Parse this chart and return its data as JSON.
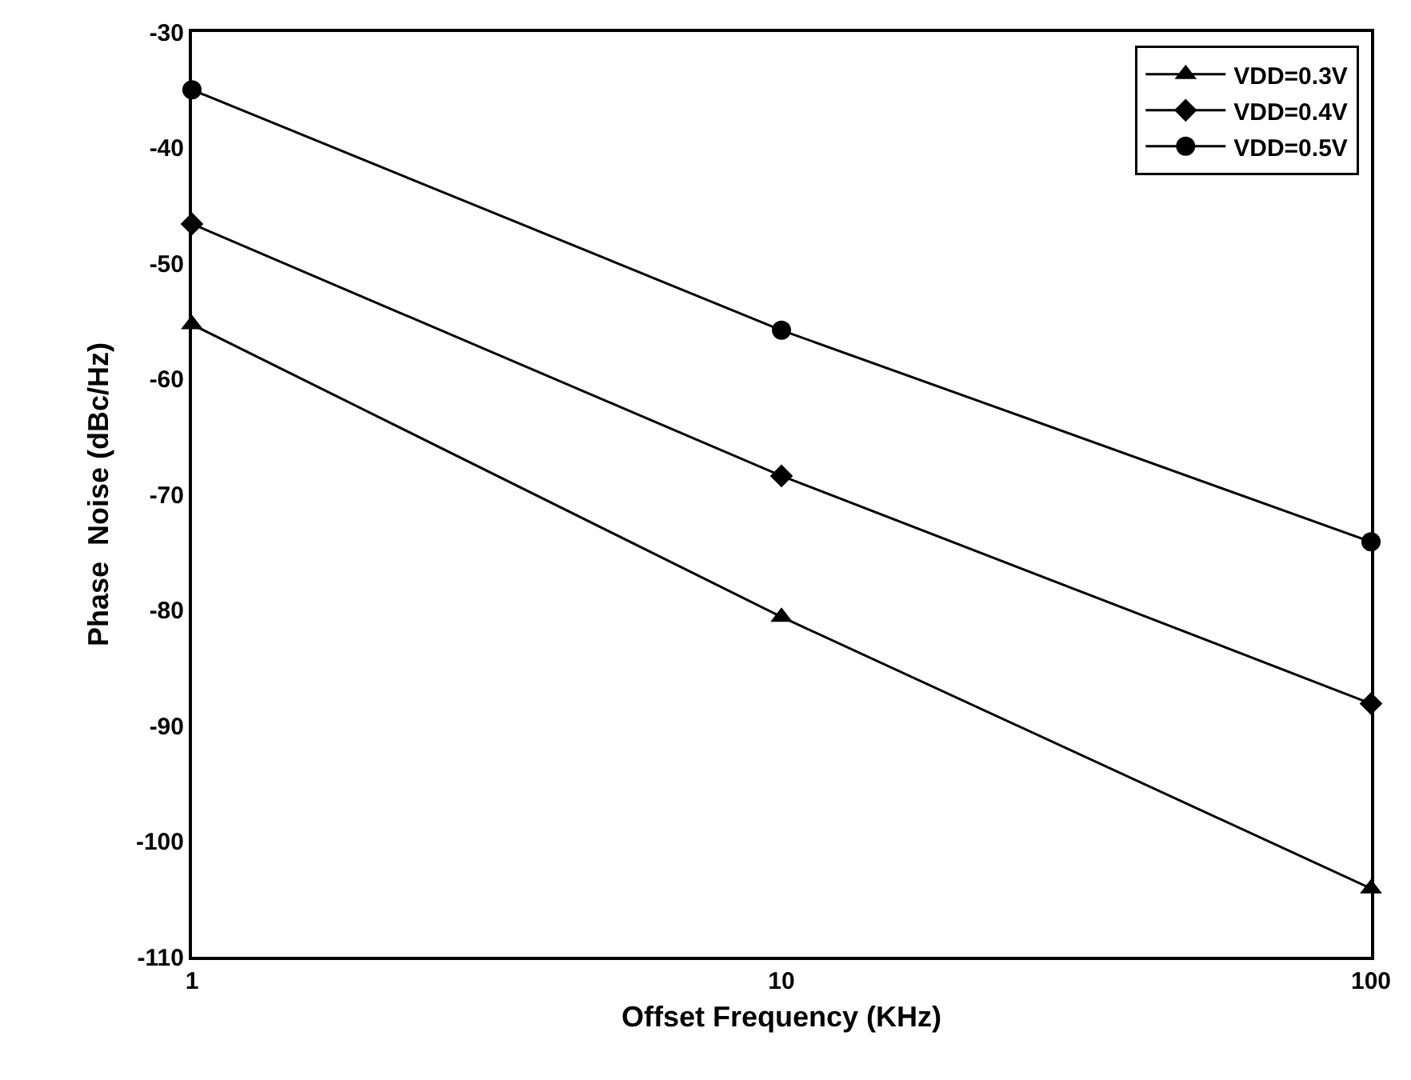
{
  "chart_data": {
    "type": "line",
    "xlabel": "Offset Frequency (KHz)",
    "ylabel": "Phase  Noise (dBc/Hz)",
    "x": [
      1,
      10,
      100
    ],
    "log": "x",
    "xlim": [
      1,
      100
    ],
    "xticks": [
      1,
      10,
      100
    ],
    "ylim": [
      -110,
      -30
    ],
    "yticks": [
      -110,
      -100,
      -90,
      -80,
      -70,
      -60,
      -50,
      -40,
      -30
    ],
    "legend": "top right",
    "line_style": "solid",
    "series": [
      {
        "name": "VDD=0.3V",
        "color": "#000000",
        "marker": "triangle",
        "values": [
          -55.3,
          -80.6,
          -104.1
        ]
      },
      {
        "name": "VDD=0.4V",
        "color": "#000000",
        "marker": "diamond",
        "values": [
          -46.6,
          -68.4,
          -88.1
        ]
      },
      {
        "name": "VDD=0.5V",
        "color": "#000000",
        "marker": "circle",
        "values": [
          -35,
          -55.8,
          -74.1
        ]
      }
    ]
  }
}
